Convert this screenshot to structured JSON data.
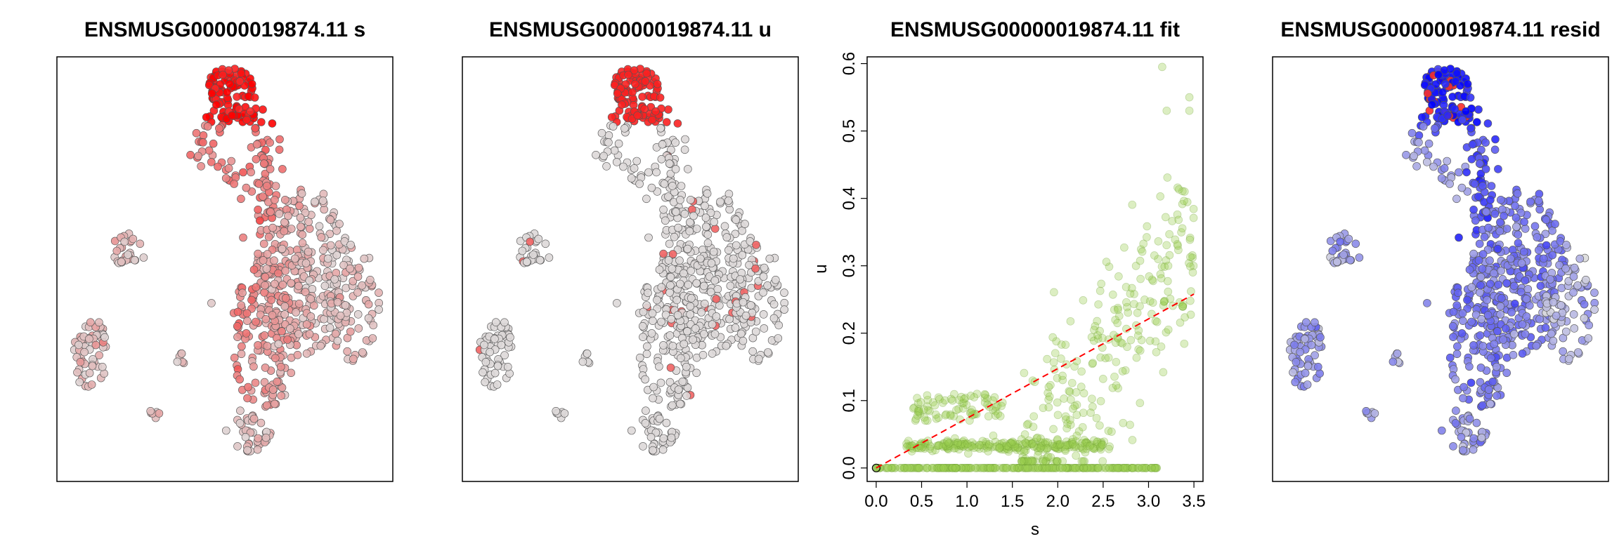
{
  "panels": [
    {
      "title": "ENSMUSG00000019874.11 s",
      "kind": "embedding",
      "map": "s"
    },
    {
      "title": "ENSMUSG00000019874.11 u",
      "kind": "embedding",
      "map": "u"
    },
    {
      "title": "ENSMUSG00000019874.11 fit",
      "kind": "scatter"
    },
    {
      "title": "ENSMUSG00000019874.11 resid",
      "kind": "embedding",
      "map": "resid"
    }
  ],
  "colors": {
    "low": "#dcdcdc",
    "high_red": "#ff0000",
    "high_blue": "#0000ff",
    "fit_points": "#9acd50",
    "fit_line": "#ff0000",
    "point_edge": "#555555"
  },
  "chart_data": [
    {
      "type": "scatter",
      "title": "ENSMUSG00000019874.11 s",
      "xlabel": "",
      "ylabel": "",
      "axes": "none",
      "color_scale": [
        "#dcdcdc",
        "#ff0000"
      ]
    },
    {
      "type": "scatter",
      "title": "ENSMUSG00000019874.11 u",
      "xlabel": "",
      "ylabel": "",
      "axes": "none",
      "color_scale": [
        "#dcdcdc",
        "#ff0000"
      ]
    },
    {
      "type": "scatter",
      "title": "ENSMUSG00000019874.11 fit",
      "xlabel": "s",
      "ylabel": "u",
      "xlim": [
        -0.1,
        3.6
      ],
      "ylim": [
        -0.02,
        0.61
      ],
      "xticks": [
        "0.0",
        "0.5",
        "1.0",
        "1.5",
        "2.0",
        "2.5",
        "3.0",
        "3.5"
      ],
      "yticks": [
        "0.0",
        "0.1",
        "0.2",
        "0.3",
        "0.4",
        "0.5",
        "0.6"
      ],
      "grid": false,
      "fit_line": {
        "x": [
          0.0,
          3.5
        ],
        "y": [
          0.0,
          0.258
        ],
        "style": "dashed"
      },
      "series": [
        {
          "values_sample": [
            [
              0.05,
              0.0
            ],
            [
              0.3,
              0.035
            ],
            [
              0.6,
              0.04
            ],
            [
              1.0,
              0.035
            ],
            [
              1.5,
              0.04
            ],
            [
              1.9,
              0.1
            ],
            [
              2.1,
              0.2
            ],
            [
              2.3,
              0.3
            ],
            [
              2.6,
              0.35
            ],
            [
              3.0,
              0.45
            ],
            [
              3.15,
              0.595
            ],
            [
              3.45,
              0.55
            ],
            [
              3.4,
              0.245
            ]
          ]
        }
      ]
    },
    {
      "type": "scatter",
      "title": "ENSMUSG00000019874.11 resid",
      "xlabel": "",
      "ylabel": "",
      "axes": "none",
      "color_scale": [
        "#0000ff",
        "#dcdcdc",
        "#ff0000"
      ]
    }
  ]
}
